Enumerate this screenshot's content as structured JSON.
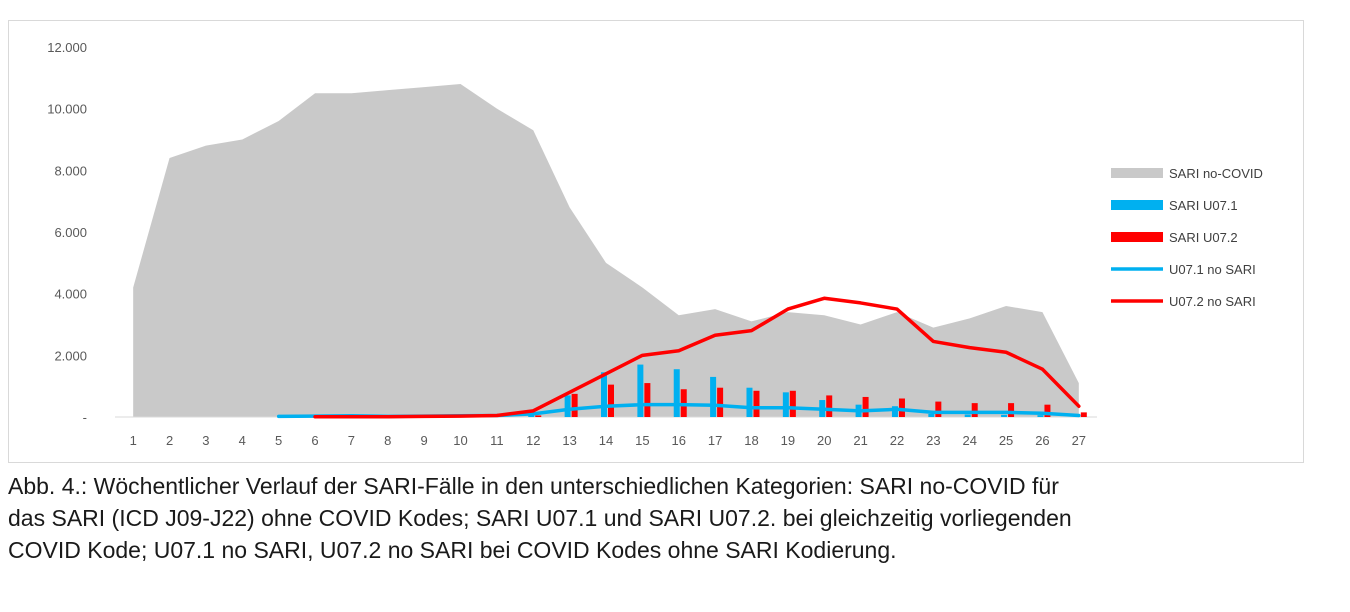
{
  "chart_data": {
    "type": "area",
    "x": [
      1,
      2,
      3,
      4,
      5,
      6,
      7,
      8,
      9,
      10,
      11,
      12,
      13,
      14,
      15,
      16,
      17,
      18,
      19,
      20,
      21,
      22,
      23,
      24,
      25,
      26,
      27
    ],
    "ylim": [
      0,
      12000
    ],
    "yticks": [
      "-",
      "2.000",
      "4.000",
      "6.000",
      "8.000",
      "10.000",
      "12.000"
    ],
    "ytick_values": [
      0,
      2000,
      4000,
      6000,
      8000,
      10000,
      12000
    ],
    "grid": false,
    "legend_position": "right",
    "series": [
      {
        "name": "SARI no-COVID",
        "kind": "area",
        "color": "#c9c9c9",
        "values": [
          4200,
          8400,
          8800,
          9000,
          9600,
          10500,
          10500,
          10600,
          10700,
          10800,
          10000,
          9300,
          6800,
          5000,
          4200,
          3300,
          3500,
          3100,
          3400,
          3300,
          3000,
          3400,
          2900,
          3200,
          3600,
          3400,
          1100
        ]
      },
      {
        "name": "SARI U07.1",
        "kind": "bar",
        "color": "#00b0f0",
        "values": [
          0,
          0,
          0,
          0,
          0,
          0,
          0,
          0,
          0,
          0,
          0,
          50,
          700,
          1450,
          1700,
          1550,
          1300,
          950,
          800,
          550,
          400,
          350,
          100,
          80,
          70,
          60,
          30
        ]
      },
      {
        "name": "SARI U07.2",
        "kind": "bar",
        "color": "#ff0000",
        "values": [
          0,
          0,
          0,
          0,
          0,
          0,
          0,
          0,
          0,
          0,
          0,
          50,
          750,
          1050,
          1100,
          900,
          950,
          850,
          850,
          700,
          650,
          600,
          500,
          450,
          450,
          400,
          150
        ]
      },
      {
        "name": "U07.1 no SARI",
        "kind": "line",
        "color": "#00b0f0",
        "values": [
          null,
          null,
          null,
          null,
          20,
          30,
          40,
          20,
          30,
          40,
          50,
          100,
          250,
          350,
          400,
          400,
          380,
          300,
          300,
          250,
          200,
          250,
          150,
          150,
          150,
          120,
          50
        ]
      },
      {
        "name": "U07.2 no SARI",
        "kind": "line",
        "color": "#ff0000",
        "values": [
          null,
          null,
          null,
          null,
          null,
          10,
          10,
          10,
          20,
          30,
          50,
          200,
          800,
          1400,
          2000,
          2150,
          2650,
          2800,
          3500,
          3850,
          3700,
          3500,
          2450,
          2250,
          2100,
          1550,
          350
        ]
      }
    ]
  },
  "caption": {
    "line1": "Abb. 4.: Wöchentlicher Verlauf der SARI-Fälle in den unterschiedlichen Kategorien: SARI no-COVID für",
    "line2": "das SARI (ICD J09-J22) ohne COVID Kodes; SARI U07.1 und SARI U07.2. bei gleichzeitig vorliegenden",
    "line3": "COVID Kode; U07.1 no SARI, U07.2 no SARI bei COVID Kodes ohne SARI Kodierung."
  }
}
